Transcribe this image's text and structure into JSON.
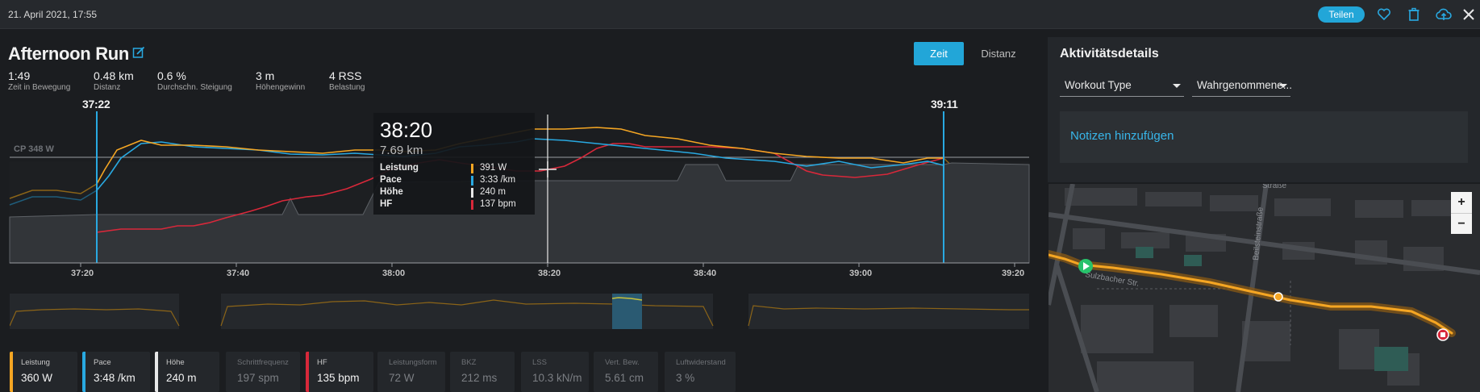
{
  "topbar": {
    "datetime": "21. April 2021, 17:55",
    "share_label": "Teilen",
    "icons": [
      "heart-icon",
      "trash-icon",
      "cloud-upload-icon",
      "close-icon"
    ]
  },
  "activity": {
    "title": "Afternoon Run",
    "view_tabs": [
      {
        "label": "Zeit",
        "active": true
      },
      {
        "label": "Distanz",
        "active": false
      }
    ],
    "stats": [
      {
        "value": "1:49",
        "label": "Zeit in Bewegung"
      },
      {
        "value": "0.48 km",
        "label": "Distanz"
      },
      {
        "value": "0.6 %",
        "label": "Durchschn. Steigung"
      },
      {
        "value": "3 m",
        "label": "Höhengewinn"
      },
      {
        "value": "4 RSS",
        "label": "Belastung"
      }
    ]
  },
  "chart": {
    "cp_label": "CP 348 W",
    "range_start": "37:22",
    "range_end": "39:11",
    "x_ticks": [
      "37:20",
      "37:40",
      "38:00",
      "38:20",
      "38:40",
      "39:00",
      "39:20"
    ],
    "colors": {
      "power": "#f5a623",
      "pace": "#29a9e1",
      "elevation": "#cfcfcf",
      "hr": "#d8283a"
    }
  },
  "tooltip": {
    "time": "38:20",
    "distance": "7.69 km",
    "rows": [
      {
        "name": "Leistung",
        "value": "391 W",
        "color": "#f5a623"
      },
      {
        "name": "Pace",
        "value": "3:33 /km",
        "color": "#29a9e1"
      },
      {
        "name": "Höhe",
        "value": "240 m",
        "color": "#e6e6e6"
      },
      {
        "name": "HF",
        "value": "137 bpm",
        "color": "#d8283a"
      }
    ]
  },
  "metrics": [
    {
      "name": "Leistung",
      "value": "360 W",
      "color": "#f5a623",
      "active": true
    },
    {
      "name": "Pace",
      "value": "3:48 /km",
      "color": "#29a9e1",
      "active": true
    },
    {
      "name": "Höhe",
      "value": "240 m",
      "color": "#e6e6e6",
      "active": true
    },
    {
      "name": "Schrittfrequenz",
      "value": "197 spm",
      "color": "",
      "active": false
    },
    {
      "name": "HF",
      "value": "135 bpm",
      "color": "#d8283a",
      "active": true
    },
    {
      "name": "Leistungsform",
      "value": "72 W",
      "color": "",
      "active": false
    },
    {
      "name": "BKZ",
      "value": "212 ms",
      "color": "",
      "active": false
    },
    {
      "name": "LSS",
      "value": "10.3 kN/m",
      "color": "",
      "active": false
    },
    {
      "name": "Vert. Bew.",
      "value": "5.61 cm",
      "color": "",
      "active": false
    },
    {
      "name": "Luftwiderstand",
      "value": "3 %",
      "color": "",
      "active": false
    }
  ],
  "details": {
    "heading": "Aktivitätsdetails",
    "workout_type": "Workout Type",
    "perceived": "Wahrgenommene...",
    "notes_label": "Notizen hinzufügen"
  },
  "map": {
    "street_top": "Straße",
    "street_vertical": "Beilsteinstraße",
    "street_bottom": "Sulzbacher Str.",
    "zoom_in": "+",
    "zoom_out": "−"
  }
}
